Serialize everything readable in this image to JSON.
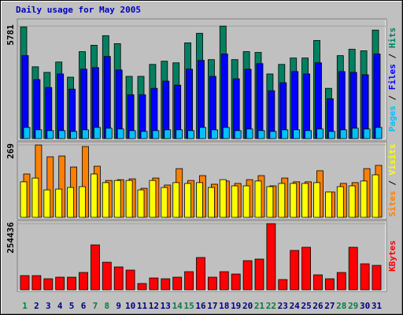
{
  "chart_data": [
    {
      "type": "bar",
      "title": "Daily usage for May 2005",
      "ylim": [
        0,
        6070
      ],
      "yticks": [
        5781
      ],
      "legend_separator": " / ",
      "series": [
        {
          "name": "Hits",
          "color": "#008060",
          "values": [
            5740,
            3690,
            3403,
            3936,
            3157,
            4469,
            4797,
            5289,
            4879,
            3198,
            3198,
            3813,
            3977,
            3895,
            4920,
            5412,
            4059,
            5781,
            4059,
            4469,
            4428,
            3321,
            3813,
            4141,
            4141,
            5043,
            2583,
            4264,
            4592,
            4510,
            5576
          ]
        },
        {
          "name": "Files",
          "color": "#0000ff",
          "values": [
            4264,
            3034,
            2624,
            3321,
            2542,
            3567,
            3649,
            4223,
            3526,
            2255,
            2255,
            2583,
            2952,
            2747,
            3567,
            4018,
            3198,
            4346,
            3075,
            3567,
            3854,
            2460,
            2870,
            3444,
            3321,
            3895,
            2050,
            3444,
            3403,
            3280,
            4346
          ]
        },
        {
          "name": "Pages",
          "color": "#00c0ff",
          "values": [
            574,
            451,
            410,
            410,
            369,
            451,
            574,
            533,
            492,
            410,
            369,
            410,
            451,
            451,
            410,
            574,
            451,
            574,
            410,
            492,
            410,
            369,
            451,
            451,
            410,
            492,
            369,
            451,
            533,
            492,
            574
          ]
        }
      ]
    },
    {
      "type": "bar",
      "ylim": [
        0,
        275
      ],
      "yticks": [
        269
      ],
      "legend_separator": " / ",
      "series": [
        {
          "name": "Visits",
          "color": "#ffff00",
          "values": [
            132,
            146,
            102,
            105,
            111,
            114,
            161,
            129,
            137,
            137,
            102,
            137,
            111,
            129,
            126,
            129,
            111,
            140,
            117,
            117,
            135,
            114,
            126,
            126,
            126,
            129,
            94,
            114,
            117,
            135,
            158
          ]
        },
        {
          "name": "Sites",
          "color": "#ff8000",
          "values": [
            161,
            269,
            225,
            228,
            187,
            263,
            190,
            137,
            140,
            143,
            108,
            146,
            120,
            181,
            137,
            155,
            123,
            135,
            126,
            140,
            155,
            117,
            146,
            132,
            132,
            173,
            94,
            126,
            129,
            181,
            193
          ]
        }
      ]
    },
    {
      "type": "bar",
      "ylim": [
        0,
        260500
      ],
      "yticks": [
        254436
      ],
      "categories": [
        "1",
        "2",
        "3",
        "4",
        "5",
        "6",
        "7",
        "8",
        "9",
        "10",
        "11",
        "12",
        "13",
        "14",
        "15",
        "16",
        "17",
        "18",
        "19",
        "20",
        "21",
        "22",
        "23",
        "24",
        "25",
        "26",
        "27",
        "28",
        "29",
        "30",
        "31"
      ],
      "category_colors": [
        "#008040",
        "#000080",
        "#000080",
        "#000080",
        "#000080",
        "#000080",
        "#008040",
        "#008040",
        "#000080",
        "#000080",
        "#000080",
        "#000080",
        "#000080",
        "#008040",
        "#008040",
        "#000080",
        "#000080",
        "#000080",
        "#000080",
        "#000080",
        "#008040",
        "#008040",
        "#000080",
        "#000080",
        "#000080",
        "#000080",
        "#000080",
        "#008040",
        "#008040",
        "#000080",
        "#000080"
      ],
      "series": [
        {
          "name": "KBytes",
          "color": "#ff0000",
          "values": [
            54522,
            54522,
            42406,
            48464,
            48464,
            66638,
            172653,
            106015,
            87841,
            75725,
            24232,
            45435,
            42406,
            48464,
            69667,
            124189,
            48464,
            69667,
            60580,
            112073,
            118131,
            254436,
            39377,
            151450,
            163566,
            57551,
            42406,
            66638,
            163566,
            99957,
            93899
          ]
        }
      ]
    }
  ]
}
